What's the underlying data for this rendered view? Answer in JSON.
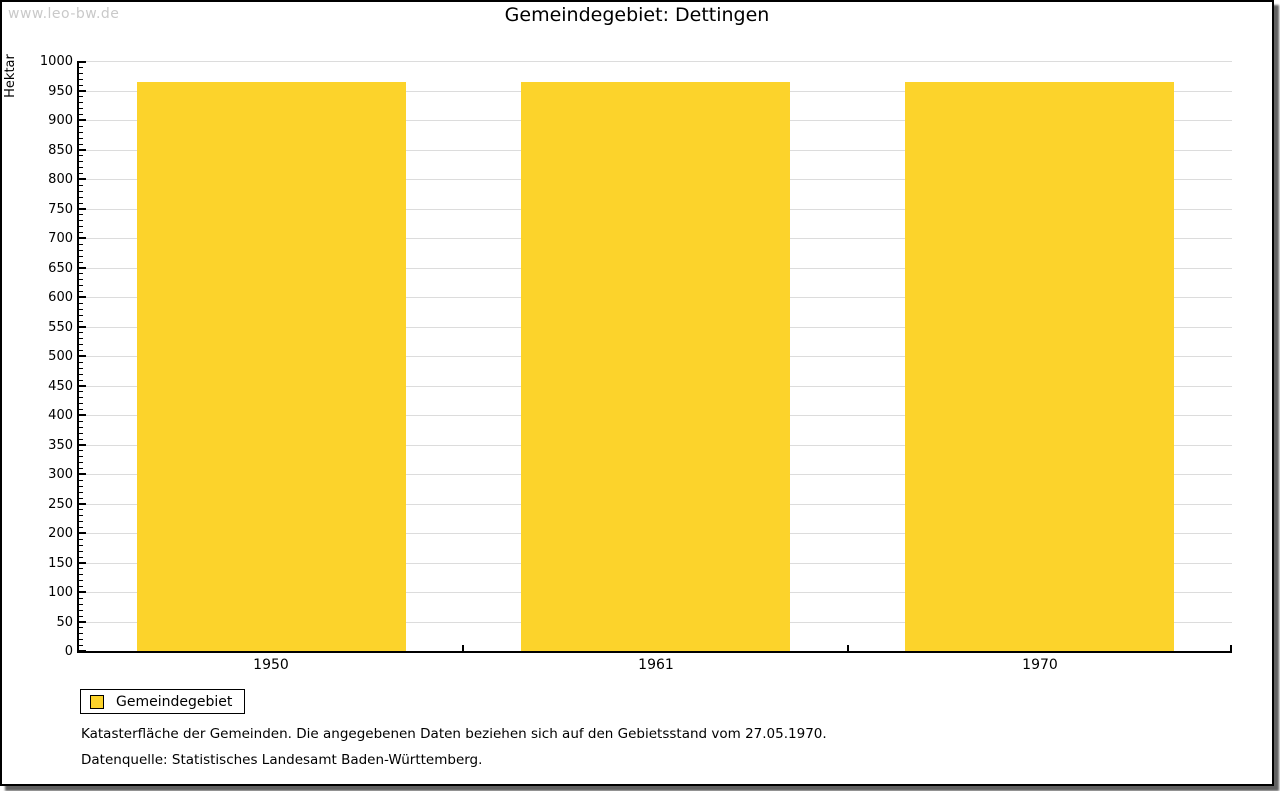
{
  "watermark": "www.leo-bw.de",
  "title": "Gemeindegebiet: Dettingen",
  "chart_data": {
    "type": "bar",
    "title": "Gemeindegebiet: Dettingen",
    "categories": [
      "1950",
      "1961",
      "1970"
    ],
    "series": [
      {
        "name": "Gemeindegebiet",
        "values": [
          965,
          965,
          965
        ],
        "color": "#fcd32b"
      }
    ],
    "xlabel": "",
    "ylabel": "Hektar",
    "ylim": [
      0,
      1000
    ],
    "y_major_step": 50,
    "y_minor_step": 10,
    "grid": true,
    "legend_position": "bottom-left",
    "bar_width_fraction": 0.7
  },
  "legend": {
    "label": "Gemeindegebiet",
    "swatch_color": "#fcd32b"
  },
  "notes": {
    "line1": "Katasterfläche der Gemeinden. Die angegebenen Daten beziehen sich auf den Gebietsstand vom 27.05.1970.",
    "line2": "Datenquelle: Statistisches Landesamt Baden-Württemberg."
  },
  "colors": {
    "bar": "#fcd32b",
    "gridline": "#dcdcdc",
    "axis": "#000000",
    "text": "#000000",
    "watermark": "#c9c9c9",
    "shadow": "#606060",
    "background": "#ffffff"
  }
}
